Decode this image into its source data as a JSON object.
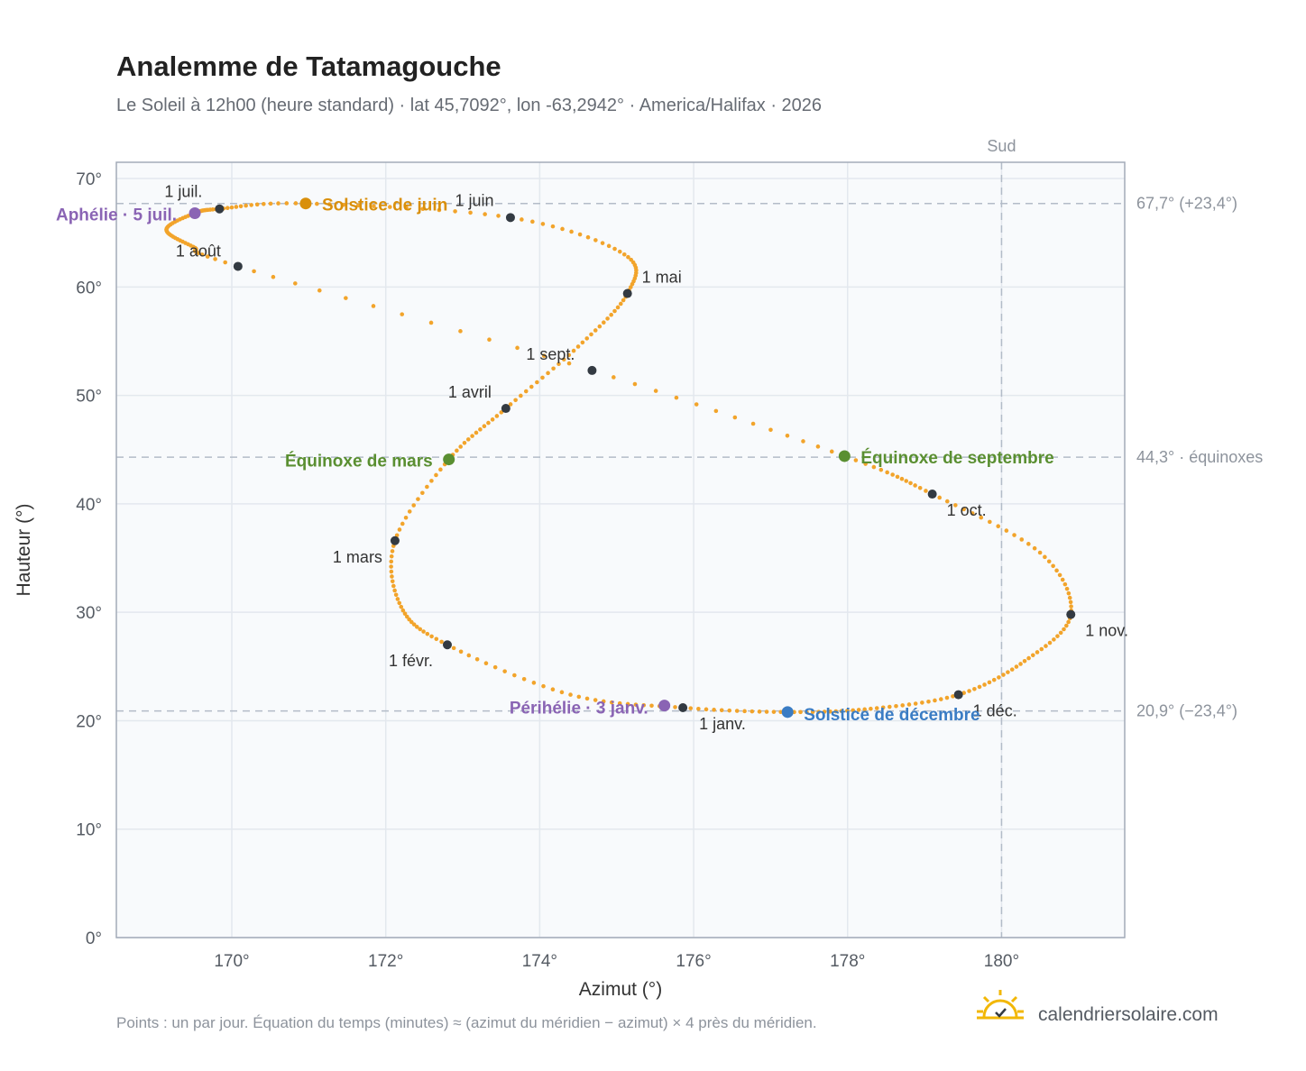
{
  "header": {
    "title": "Analemme de Tatamagouche",
    "subtitle": "Le Soleil à 12h00 (heure standard) · lat 45,7092°, lon -63,2942° · America/Halifax · 2026"
  },
  "footer": {
    "note": "Points : un par jour. Équation du temps (minutes) ≈ (azimut du méridien − azimut) × 4 près du méridien.",
    "brand": "calendriersolaire.com",
    "brand_icon": "sun-check-icon"
  },
  "colors": {
    "curve": "#f2a42b",
    "month_marker": "#333a42",
    "solstice_june": "#d98f0b",
    "solstice_december": "#3a7cc4",
    "equinox": "#5a8f31",
    "apsis": "#8a64b4",
    "reference_line": "#b3bcc8",
    "plot_background": "#f8fafc"
  },
  "chart_data": {
    "type": "scatter",
    "title": "Analemme de Tatamagouche",
    "xlabel": "Azimut (°)",
    "ylabel": "Hauteur (°)",
    "xlim": [
      168.5,
      181.6
    ],
    "ylim": [
      0,
      71.5
    ],
    "x_ticks": [
      170,
      172,
      174,
      176,
      178,
      180
    ],
    "x_tick_labels": [
      "170°",
      "172°",
      "174°",
      "176°",
      "178°",
      "180°"
    ],
    "y_ticks": [
      0,
      10,
      20,
      30,
      40,
      50,
      60,
      70
    ],
    "y_tick_labels": [
      "0°",
      "10°",
      "20°",
      "30°",
      "40°",
      "50°",
      "60°",
      "70°"
    ],
    "grid": true,
    "reference_lines": {
      "vertical": [
        {
          "x": 180,
          "label": "Sud"
        }
      ],
      "horizontal": [
        {
          "y": 67.7,
          "label": "67,7° (+23,4°)"
        },
        {
          "y": 44.3,
          "label": "44,3° · équinoxes"
        },
        {
          "y": 20.9,
          "label": "20,9° (−23,4°)"
        }
      ]
    },
    "months": [
      {
        "label": "1 janv.",
        "azimuth": 175.86,
        "altitude": 21.2
      },
      {
        "label": "1 févr.",
        "azimuth": 172.8,
        "altitude": 27.0
      },
      {
        "label": "1 mars",
        "azimuth": 172.12,
        "altitude": 36.6
      },
      {
        "label": "1 avril",
        "azimuth": 173.56,
        "altitude": 48.8
      },
      {
        "label": "1 mai",
        "azimuth": 175.14,
        "altitude": 59.4
      },
      {
        "label": "1 juin",
        "azimuth": 173.62,
        "altitude": 66.4
      },
      {
        "label": "1 juil.",
        "azimuth": 169.84,
        "altitude": 67.2
      },
      {
        "label": "1 août",
        "azimuth": 170.08,
        "altitude": 61.9
      },
      {
        "label": "1 sept.",
        "azimuth": 174.68,
        "altitude": 52.3
      },
      {
        "label": "1 oct.",
        "azimuth": 179.1,
        "altitude": 40.9
      },
      {
        "label": "1 nov.",
        "azimuth": 180.9,
        "altitude": 29.8
      },
      {
        "label": "1 déc.",
        "azimuth": 179.44,
        "altitude": 22.4
      }
    ],
    "events": [
      {
        "label": "Solstice de juin",
        "azimuth": 170.96,
        "altitude": 67.7,
        "kind": "solstice_june"
      },
      {
        "label": "Solstice de décembre",
        "azimuth": 177.22,
        "altitude": 20.8,
        "kind": "solstice_december"
      },
      {
        "label": "Équinoxe de mars",
        "azimuth": 172.82,
        "altitude": 44.1,
        "kind": "equinox"
      },
      {
        "label": "Équinoxe de septembre",
        "azimuth": 177.96,
        "altitude": 44.4,
        "kind": "equinox"
      },
      {
        "label": "Aphélie · 5 juil.",
        "azimuth": 169.52,
        "altitude": 66.8,
        "kind": "apsis"
      },
      {
        "label": "Périhélie · 3 janv.",
        "azimuth": 175.62,
        "altitude": 21.4,
        "kind": "apsis"
      }
    ],
    "path_anchor_points": [
      {
        "azimuth": 177.22,
        "altitude": 20.8
      },
      {
        "azimuth": 175.86,
        "altitude": 21.2
      },
      {
        "azimuth": 174.4,
        "altitude": 22.4
      },
      {
        "azimuth": 172.8,
        "altitude": 27.0
      },
      {
        "azimuth": 172.2,
        "altitude": 30.5
      },
      {
        "azimuth": 172.12,
        "altitude": 36.6
      },
      {
        "azimuth": 172.82,
        "altitude": 44.1
      },
      {
        "azimuth": 173.56,
        "altitude": 48.8
      },
      {
        "azimuth": 174.5,
        "altitude": 54.5
      },
      {
        "azimuth": 175.14,
        "altitude": 59.4
      },
      {
        "azimuth": 175.1,
        "altitude": 63.0
      },
      {
        "azimuth": 173.62,
        "altitude": 66.4
      },
      {
        "azimuth": 170.96,
        "altitude": 67.7
      },
      {
        "azimuth": 169.84,
        "altitude": 67.2
      },
      {
        "azimuth": 169.52,
        "altitude": 66.8
      },
      {
        "azimuth": 169.15,
        "altitude": 65.3
      },
      {
        "azimuth": 169.5,
        "altitude": 63.7
      },
      {
        "azimuth": 170.08,
        "altitude": 61.9
      },
      {
        "azimuth": 174.68,
        "altitude": 52.3
      },
      {
        "azimuth": 177.96,
        "altitude": 44.4
      },
      {
        "azimuth": 179.1,
        "altitude": 40.9
      },
      {
        "azimuth": 180.5,
        "altitude": 35.5
      },
      {
        "azimuth": 180.9,
        "altitude": 29.8
      },
      {
        "azimuth": 180.3,
        "altitude": 25.5
      },
      {
        "azimuth": 179.44,
        "altitude": 22.4
      },
      {
        "azimuth": 178.3,
        "altitude": 21.1
      },
      {
        "azimuth": 177.22,
        "altitude": 20.8
      }
    ]
  }
}
